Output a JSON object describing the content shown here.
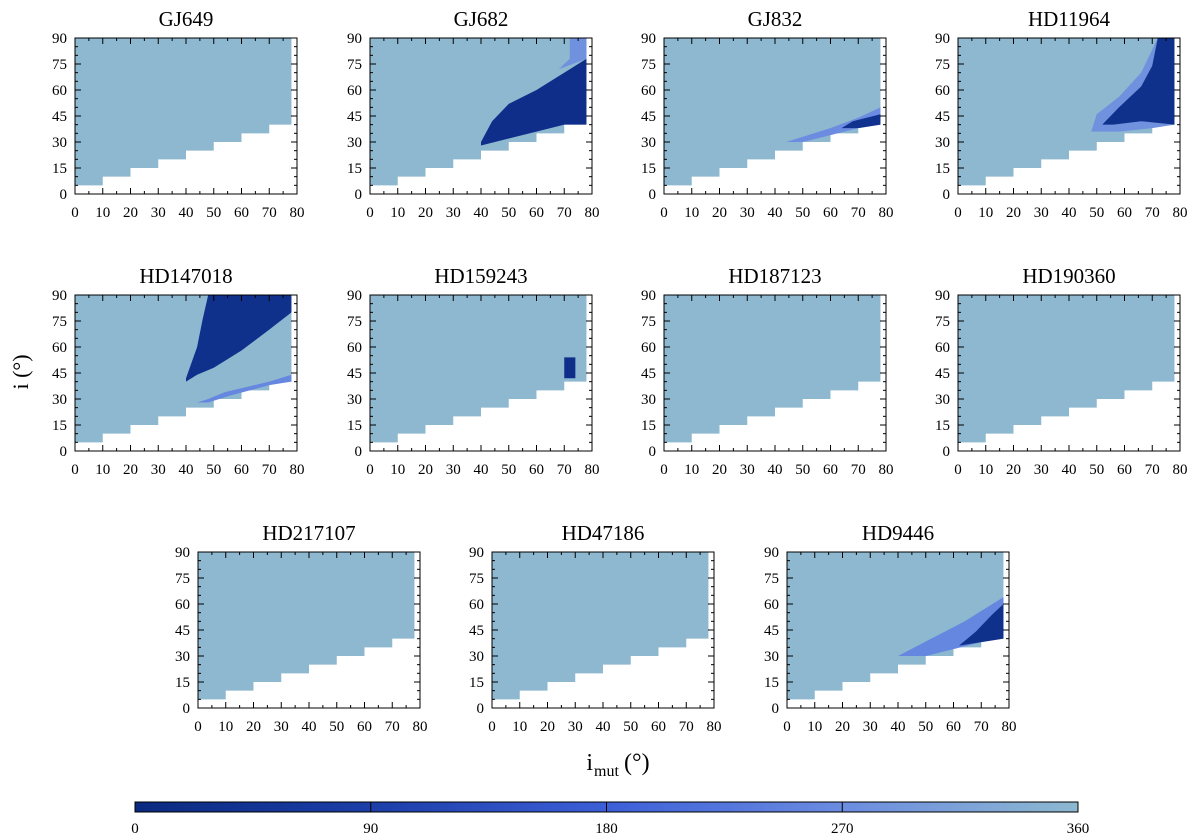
{
  "chart_data": {
    "type": "heatmap",
    "figure": {
      "x_axis_label": "i",
      "x_axis_subscript": "mut",
      "x_axis_unit": "(°)",
      "y_axis_label": "i (°)"
    },
    "x_ticks": [
      0,
      10,
      20,
      30,
      40,
      50,
      60,
      70,
      80
    ],
    "y_ticks": [
      0,
      15,
      30,
      45,
      60,
      75,
      90
    ],
    "xlim": [
      0,
      80
    ],
    "ylim": [
      0,
      90
    ],
    "colorbar": {
      "range": [
        0,
        360
      ],
      "ticks": [
        0,
        90,
        180,
        270,
        360
      ],
      "colors": [
        "#0a2a80",
        "#1c3ea8",
        "#3c5fd8",
        "#6b8ce0",
        "#8db8d0"
      ]
    },
    "colors": {
      "fill": "#8db8d0",
      "dark": "#0a2a80",
      "mid1": "#1c3ea8",
      "mid2": "#3c5fd8",
      "light": "#6b8ce0"
    },
    "panels": [
      {
        "title": "GJ649",
        "features": []
      },
      {
        "title": "GJ682",
        "features": [
          {
            "value": 20,
            "points": [
              [
                40,
                30
              ],
              [
                44,
                42
              ],
              [
                50,
                52
              ],
              [
                60,
                60
              ],
              [
                68,
                68
              ],
              [
                72,
                72
              ],
              [
                78,
                78
              ],
              [
                78,
                40
              ],
              [
                70,
                40
              ],
              [
                60,
                36
              ],
              [
                50,
                32
              ],
              [
                40,
                28
              ]
            ]
          },
          {
            "value": 280,
            "points": [
              [
                68,
                72
              ],
              [
                72,
                78
              ],
              [
                72,
                90
              ],
              [
                78,
                90
              ],
              [
                78,
                78
              ]
            ]
          }
        ]
      },
      {
        "title": "GJ832",
        "features": [
          {
            "value": 270,
            "points": [
              [
                44,
                30
              ],
              [
                60,
                38
              ],
              [
                70,
                44
              ],
              [
                78,
                50
              ],
              [
                78,
                40
              ],
              [
                70,
                38
              ],
              [
                60,
                34
              ],
              [
                50,
                30
              ]
            ]
          },
          {
            "value": 30,
            "points": [
              [
                64,
                38
              ],
              [
                68,
                42
              ],
              [
                78,
                46
              ],
              [
                78,
                40
              ],
              [
                70,
                38
              ]
            ]
          }
        ]
      },
      {
        "title": "HD11964",
        "features": [
          {
            "value": 280,
            "points": [
              [
                48,
                36
              ],
              [
                50,
                46
              ],
              [
                58,
                56
              ],
              [
                66,
                70
              ],
              [
                72,
                90
              ],
              [
                78,
                90
              ],
              [
                78,
                40
              ],
              [
                70,
                38
              ],
              [
                58,
                36
              ]
            ]
          },
          {
            "value": 25,
            "points": [
              [
                52,
                40
              ],
              [
                58,
                50
              ],
              [
                66,
                62
              ],
              [
                70,
                74
              ],
              [
                72,
                90
              ],
              [
                78,
                90
              ],
              [
                78,
                40
              ],
              [
                66,
                42
              ],
              [
                56,
                40
              ]
            ]
          }
        ]
      },
      {
        "title": "HD147018",
        "features": [
          {
            "value": 25,
            "points": [
              [
                40,
                42
              ],
              [
                44,
                60
              ],
              [
                46,
                76
              ],
              [
                48,
                90
              ],
              [
                78,
                90
              ],
              [
                78,
                80
              ],
              [
                70,
                70
              ],
              [
                60,
                58
              ],
              [
                50,
                48
              ],
              [
                44,
                44
              ],
              [
                40,
                40
              ]
            ]
          },
          {
            "value": 260,
            "points": [
              [
                44,
                28
              ],
              [
                48,
                30
              ],
              [
                54,
                34
              ],
              [
                70,
                40
              ],
              [
                78,
                44
              ],
              [
                78,
                40
              ],
              [
                70,
                38
              ],
              [
                56,
                32
              ],
              [
                48,
                28
              ]
            ]
          }
        ]
      },
      {
        "title": "HD159243",
        "features": [
          {
            "value": 20,
            "points": [
              [
                70,
                42
              ],
              [
                70,
                54
              ],
              [
                74,
                54
              ],
              [
                74,
                42
              ]
            ]
          }
        ]
      },
      {
        "title": "HD187123",
        "features": []
      },
      {
        "title": "HD190360",
        "features": []
      },
      {
        "title": "HD217107",
        "features": []
      },
      {
        "title": "HD47186",
        "features": []
      },
      {
        "title": "HD9446",
        "features": [
          {
            "value": 260,
            "points": [
              [
                40,
                30
              ],
              [
                52,
                40
              ],
              [
                64,
                50
              ],
              [
                72,
                58
              ],
              [
                78,
                64
              ],
              [
                78,
                40
              ],
              [
                70,
                38
              ],
              [
                60,
                34
              ],
              [
                50,
                30
              ]
            ]
          },
          {
            "value": 25,
            "points": [
              [
                62,
                36
              ],
              [
                68,
                44
              ],
              [
                74,
                54
              ],
              [
                78,
                60
              ],
              [
                78,
                40
              ],
              [
                70,
                38
              ]
            ]
          }
        ]
      }
    ]
  }
}
